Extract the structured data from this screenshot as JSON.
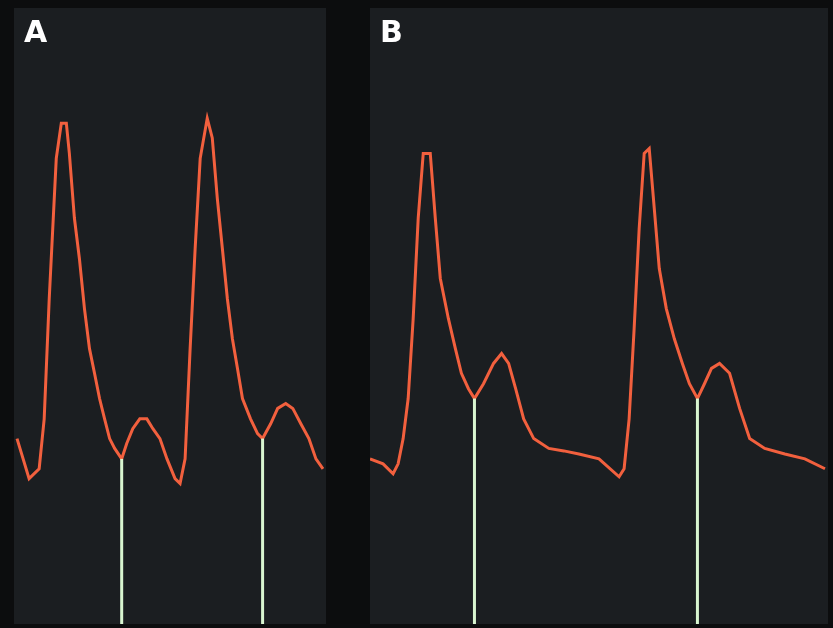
{
  "chart_data": [
    {
      "type": "line",
      "panel_label": "A",
      "color": "#f2603e",
      "line_style": "solid",
      "grid": false,
      "tick_labels": false,
      "xlim": [
        0,
        310
      ],
      "ylim": [
        0,
        100
      ],
      "x": [
        3,
        15,
        25,
        30,
        35,
        42,
        47,
        52,
        55,
        60,
        65,
        70,
        75,
        80,
        85,
        90,
        95,
        100,
        107,
        112,
        118,
        125,
        132,
        138,
        145,
        152,
        160,
        165,
        170,
        175,
        180,
        185,
        192,
        197,
        202,
        207,
        212,
        217,
        222,
        227,
        235,
        242,
        247,
        255,
        262,
        270,
        277,
        285,
        293,
        300,
        307
      ],
      "values": [
        30.1,
        23.6,
        25.2,
        33.3,
        52.8,
        75.6,
        81.3,
        81.3,
        76.4,
        65.9,
        59.3,
        51.2,
        44.7,
        40.7,
        36.6,
        33.3,
        30.1,
        28.5,
        26.8,
        29.3,
        31.7,
        33.3,
        33.3,
        31.7,
        30.1,
        26.8,
        23.6,
        22.8,
        26.8,
        44.7,
        61.0,
        75.6,
        82.1,
        78.9,
        69.1,
        61.0,
        52.8,
        46.3,
        41.5,
        36.6,
        33.3,
        30.9,
        30.1,
        32.5,
        35.0,
        35.8,
        35.0,
        32.5,
        30.1,
        26.8,
        25.2
      ],
      "notches": {
        "x": [
          107,
          247
        ],
        "values": [
          26.8,
          30.1
        ],
        "color": "#d8f5d0"
      }
    },
    {
      "type": "line",
      "panel_label": "B",
      "color": "#f2603e",
      "line_style": "solid",
      "grid": false,
      "tick_labels": false,
      "xlim": [
        0,
        456
      ],
      "ylim": [
        0,
        100
      ],
      "x": [
        0,
        13,
        23,
        28,
        33,
        38,
        43,
        48,
        53,
        60,
        65,
        70,
        78,
        85,
        91,
        98,
        104,
        113,
        123,
        131,
        138,
        145,
        153,
        163,
        178,
        193,
        208,
        228,
        248,
        253,
        258,
        263,
        268,
        273,
        278,
        283,
        288,
        295,
        303,
        311,
        318,
        326,
        333,
        340,
        348,
        358,
        368,
        378,
        393,
        413,
        433,
        453
      ],
      "values": [
        26.8,
        26.0,
        24.4,
        26.0,
        30.1,
        36.6,
        49.6,
        65.9,
        76.4,
        76.4,
        65.9,
        56.1,
        49.6,
        44.7,
        40.7,
        38.2,
        36.6,
        39.0,
        42.3,
        43.9,
        42.3,
        38.2,
        33.3,
        30.1,
        28.5,
        28.1,
        27.6,
        26.8,
        23.9,
        25.2,
        33.3,
        48.0,
        64.2,
        76.4,
        77.2,
        67.5,
        57.7,
        51.2,
        46.3,
        42.3,
        39.0,
        36.6,
        39.0,
        41.5,
        42.3,
        40.7,
        35.0,
        30.1,
        28.5,
        27.6,
        26.8,
        25.2
      ],
      "notches": {
        "x": [
          104,
          326
        ],
        "values": [
          36.6,
          36.6
        ],
        "color": "#d8f5d0"
      }
    }
  ]
}
